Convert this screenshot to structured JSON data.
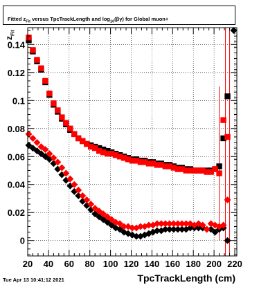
{
  "title_parts": {
    "pre": "Fitted  z",
    "sub1": "Fit",
    "mid": " versus TpcTrackLength and log",
    "sub2": "10",
    "post": "(βγ) for Global muon+"
  },
  "ylabel_parts": {
    "main": "z",
    "sub": "Fit"
  },
  "xlabel": "TpcTrackLength (cm)",
  "datestamp": "Tue Apr 13 10:41:12 2021",
  "chart_data": {
    "type": "scatter",
    "xlabel": "TpcTrackLength (cm)",
    "ylabel": "zFit",
    "xlim": [
      20,
      222
    ],
    "ylim": [
      -0.011,
      0.152
    ],
    "xticks": [
      20,
      40,
      60,
      80,
      100,
      120,
      140,
      160,
      180,
      200,
      220
    ],
    "yticks": [
      0,
      0.02,
      0.04,
      0.06,
      0.08,
      0.1,
      0.12,
      0.14
    ],
    "grid": true,
    "colors": {
      "black": "#000000",
      "red": "#ff0000"
    },
    "series": [
      {
        "marker": "square",
        "color": "#000000",
        "x": [
          21,
          25,
          29,
          33,
          37,
          41,
          45,
          49,
          53,
          57,
          61,
          65,
          69,
          73,
          77,
          81,
          85,
          89,
          93,
          97,
          101,
          105,
          109,
          113,
          117,
          121,
          125,
          129,
          133,
          137,
          141,
          145,
          149,
          153,
          157,
          161,
          165,
          169,
          173,
          177,
          181,
          185,
          189,
          193,
          197,
          201,
          205,
          209,
          213
        ],
        "y": [
          0.143,
          0.135,
          0.128,
          0.122,
          0.113,
          0.104,
          0.097,
          0.092,
          0.087,
          0.083,
          0.079,
          0.076,
          0.073,
          0.071,
          0.069,
          0.068,
          0.067,
          0.066,
          0.065,
          0.064,
          0.063,
          0.062,
          0.061,
          0.06,
          0.059,
          0.058,
          0.058,
          0.057,
          0.057,
          0.056,
          0.056,
          0.055,
          0.055,
          0.054,
          0.054,
          0.053,
          0.052,
          0.052,
          0.051,
          0.051,
          0.05,
          0.05,
          0.05,
          0.05,
          0.05,
          0.051,
          0.053,
          0.073,
          0.103
        ]
      },
      {
        "marker": "square",
        "color": "#ff0000",
        "x": [
          21,
          25,
          29,
          33,
          37,
          41,
          45,
          49,
          53,
          57,
          61,
          65,
          69,
          73,
          77,
          81,
          85,
          89,
          93,
          97,
          101,
          105,
          109,
          113,
          117,
          121,
          125,
          129,
          133,
          137,
          141,
          145,
          149,
          153,
          157,
          161,
          165,
          169,
          173,
          177,
          181,
          185,
          189,
          193,
          197,
          201,
          205,
          209,
          213
        ],
        "y": [
          0.145,
          0.136,
          0.129,
          0.123,
          0.114,
          0.105,
          0.098,
          0.093,
          0.088,
          0.084,
          0.08,
          0.076,
          0.073,
          0.071,
          0.069,
          0.067,
          0.066,
          0.064,
          0.063,
          0.062,
          0.062,
          0.061,
          0.06,
          0.059,
          0.058,
          0.057,
          0.057,
          0.056,
          0.056,
          0.055,
          0.055,
          0.054,
          0.054,
          0.053,
          0.053,
          0.052,
          0.051,
          0.051,
          0.05,
          0.05,
          0.05,
          0.05,
          0.05,
          0.049,
          0.049,
          0.051,
          0.048,
          0.086,
          0.074
        ]
      },
      {
        "marker": "diamond",
        "color": "#000000",
        "x": [
          21,
          25,
          29,
          33,
          37,
          41,
          45,
          49,
          53,
          57,
          61,
          65,
          69,
          73,
          77,
          81,
          85,
          89,
          93,
          97,
          101,
          105,
          109,
          113,
          117,
          121,
          125,
          129,
          133,
          137,
          141,
          145,
          149,
          153,
          157,
          161,
          165,
          169,
          173,
          177,
          181,
          185,
          189,
          193,
          197,
          201,
          205,
          209,
          213,
          219
        ],
        "y": [
          0.068,
          0.066,
          0.064,
          0.062,
          0.06,
          0.058,
          0.055,
          0.051,
          0.047,
          0.043,
          0.039,
          0.035,
          0.032,
          0.028,
          0.025,
          0.022,
          0.019,
          0.017,
          0.015,
          0.013,
          0.011,
          0.009,
          0.008,
          0.006,
          0.005,
          0.004,
          0.003,
          0.003,
          0.004,
          0.005,
          0.006,
          0.007,
          0.007,
          0.008,
          0.008,
          0.008,
          0.008,
          0.008,
          0.008,
          0.009,
          0.009,
          0.009,
          0.009,
          0.008,
          0.008,
          0.006,
          0.008,
          0.009,
          0.0,
          0.15
        ]
      },
      {
        "marker": "diamond",
        "color": "#ff0000",
        "x": [
          21,
          25,
          29,
          33,
          37,
          41,
          45,
          49,
          53,
          57,
          61,
          65,
          69,
          73,
          77,
          81,
          85,
          89,
          93,
          97,
          101,
          105,
          109,
          113,
          117,
          121,
          125,
          129,
          133,
          137,
          141,
          145,
          149,
          153,
          157,
          161,
          165,
          169,
          173,
          177,
          181,
          185,
          189,
          193,
          197,
          201,
          205,
          209,
          213
        ],
        "y": [
          0.076,
          0.073,
          0.07,
          0.067,
          0.065,
          0.062,
          0.059,
          0.056,
          0.052,
          0.048,
          0.044,
          0.04,
          0.036,
          0.032,
          0.029,
          0.026,
          0.023,
          0.021,
          0.019,
          0.017,
          0.015,
          0.013,
          0.012,
          0.01,
          0.01,
          0.009,
          0.009,
          0.01,
          0.01,
          0.011,
          0.011,
          0.012,
          0.012,
          0.012,
          0.012,
          0.012,
          0.012,
          0.012,
          0.012,
          0.012,
          0.011,
          0.012,
          0.011,
          0.008,
          0.012,
          0.011,
          0.01,
          0.011,
          0.029
        ]
      }
    ],
    "error_bars": [
      {
        "x": 205,
        "low": 0.0,
        "high": 0.11,
        "color": "#ff0000"
      },
      {
        "x": 211,
        "low": -0.011,
        "high": 0.152,
        "color": "#ff0000"
      },
      {
        "x": 215,
        "low": -0.011,
        "high": 0.152,
        "color": "#ff0000"
      }
    ]
  }
}
